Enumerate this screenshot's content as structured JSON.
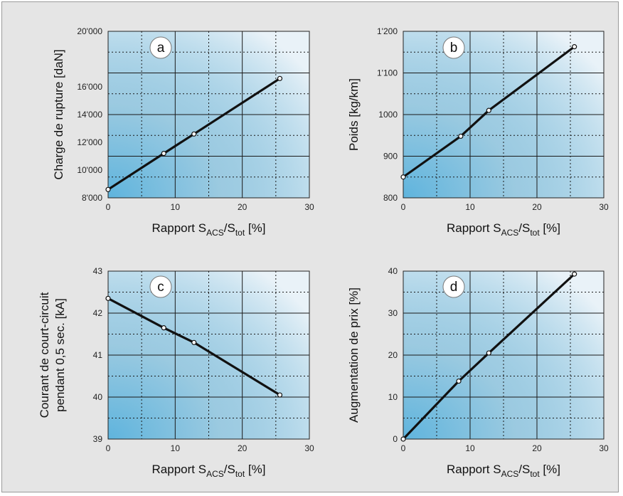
{
  "colors": {
    "frame_bg": "#e5e5e5",
    "plot_blue": "#5fb4dd",
    "plot_light": "#e9f2f8",
    "line": "#111111",
    "badge": "#ffffff"
  },
  "chart_data": [
    {
      "type": "line",
      "badge": "a",
      "ylabel": "Charge de rupture [daN]",
      "xlabel": {
        "prefix": "Rapport S",
        "sub1": "ACS",
        "mid": "/S",
        "sub2": "tot",
        "suffix": " [%]"
      },
      "xlim": [
        0,
        30
      ],
      "ylim": [
        8000,
        20000
      ],
      "xticks": [
        "0",
        "10",
        "20",
        "30"
      ],
      "yticks": [
        "8'000",
        "10'000",
        "12'000",
        "14'000",
        "16'000",
        "20'000"
      ],
      "ytick_values": [
        8000,
        10000,
        12000,
        14000,
        16000,
        20000
      ],
      "x": [
        0,
        8.3,
        12.8,
        25.6
      ],
      "y": [
        8600,
        11200,
        12600,
        16600
      ]
    },
    {
      "type": "line",
      "badge": "b",
      "ylabel": "Poids [kg/km]",
      "xlabel": {
        "prefix": "Rapport S",
        "sub1": "ACS",
        "mid": "/S",
        "sub2": "tot",
        "suffix": " [%]"
      },
      "xlim": [
        0,
        30
      ],
      "ylim": [
        800,
        1200
      ],
      "xticks": [
        "0",
        "10",
        "20",
        "30"
      ],
      "yticks": [
        "800",
        "900",
        "1000",
        "1'100",
        "1'200"
      ],
      "ytick_values": [
        800,
        900,
        1000,
        1100,
        1200
      ],
      "x": [
        0,
        8.6,
        12.8,
        25.6
      ],
      "y": [
        850,
        948,
        1010,
        1163
      ]
    },
    {
      "type": "line",
      "badge": "c",
      "ylabel": [
        "Courant de court-circuit",
        "pendant 0,5 sec. [kA]"
      ],
      "xlabel": {
        "prefix": "Rapport S",
        "sub1": "ACS",
        "mid": "/S",
        "sub2": "tot",
        "suffix": " [%]"
      },
      "xlim": [
        0,
        30
      ],
      "ylim": [
        39,
        43
      ],
      "xticks": [
        "0",
        "10",
        "20",
        "30"
      ],
      "yticks": [
        "39",
        "40",
        "41",
        "42",
        "43"
      ],
      "ytick_values": [
        39,
        40,
        41,
        42,
        43
      ],
      "x": [
        0,
        8.3,
        12.8,
        25.6
      ],
      "y": [
        42.35,
        41.65,
        41.3,
        40.05
      ]
    },
    {
      "type": "line",
      "badge": "d",
      "ylabel": "Augmentation de prix [%]",
      "xlabel": {
        "prefix": "Rapport S",
        "sub1": "ACS",
        "mid": "/S",
        "sub2": "tot",
        "suffix": " [%]"
      },
      "xlim": [
        0,
        30
      ],
      "ylim": [
        0,
        40
      ],
      "xticks": [
        "0",
        "10",
        "20",
        "30"
      ],
      "yticks": [
        "0",
        "10",
        "20",
        "30",
        "40"
      ],
      "ytick_values": [
        0,
        10,
        20,
        30,
        40
      ],
      "x": [
        0,
        8.3,
        12.8,
        25.6
      ],
      "y": [
        0,
        13.8,
        20.5,
        39.3
      ]
    }
  ]
}
